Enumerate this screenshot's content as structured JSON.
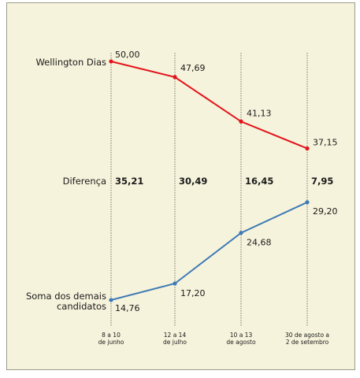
{
  "chart_data": {
    "type": "line",
    "categories": [
      "8 a 10\nde junho",
      "12 a 14\nde julho",
      "10 a 13\nde agosto",
      "30 de agosto a\n2 de setembro"
    ],
    "series": [
      {
        "name": "Wellington Dias",
        "values": [
          50.0,
          47.69,
          41.13,
          37.15
        ],
        "value_labels": [
          "50,00",
          "47,69",
          "41,13",
          "37,15"
        ],
        "color": "#e3131b"
      },
      {
        "name": "Soma dos demais\ncandidatos",
        "values": [
          14.76,
          17.2,
          24.68,
          29.2
        ],
        "value_labels": [
          "14,76",
          "17,20",
          "24,68",
          "29,20"
        ],
        "color": "#3e7bb5"
      }
    ],
    "difference": {
      "label": "Diferença",
      "values": [
        "35,21",
        "30,49",
        "16,45",
        "7,95"
      ]
    },
    "ylim": [
      14.76,
      50.0
    ],
    "grid": "vertical dotted lines at each category",
    "legend": "left labels"
  }
}
